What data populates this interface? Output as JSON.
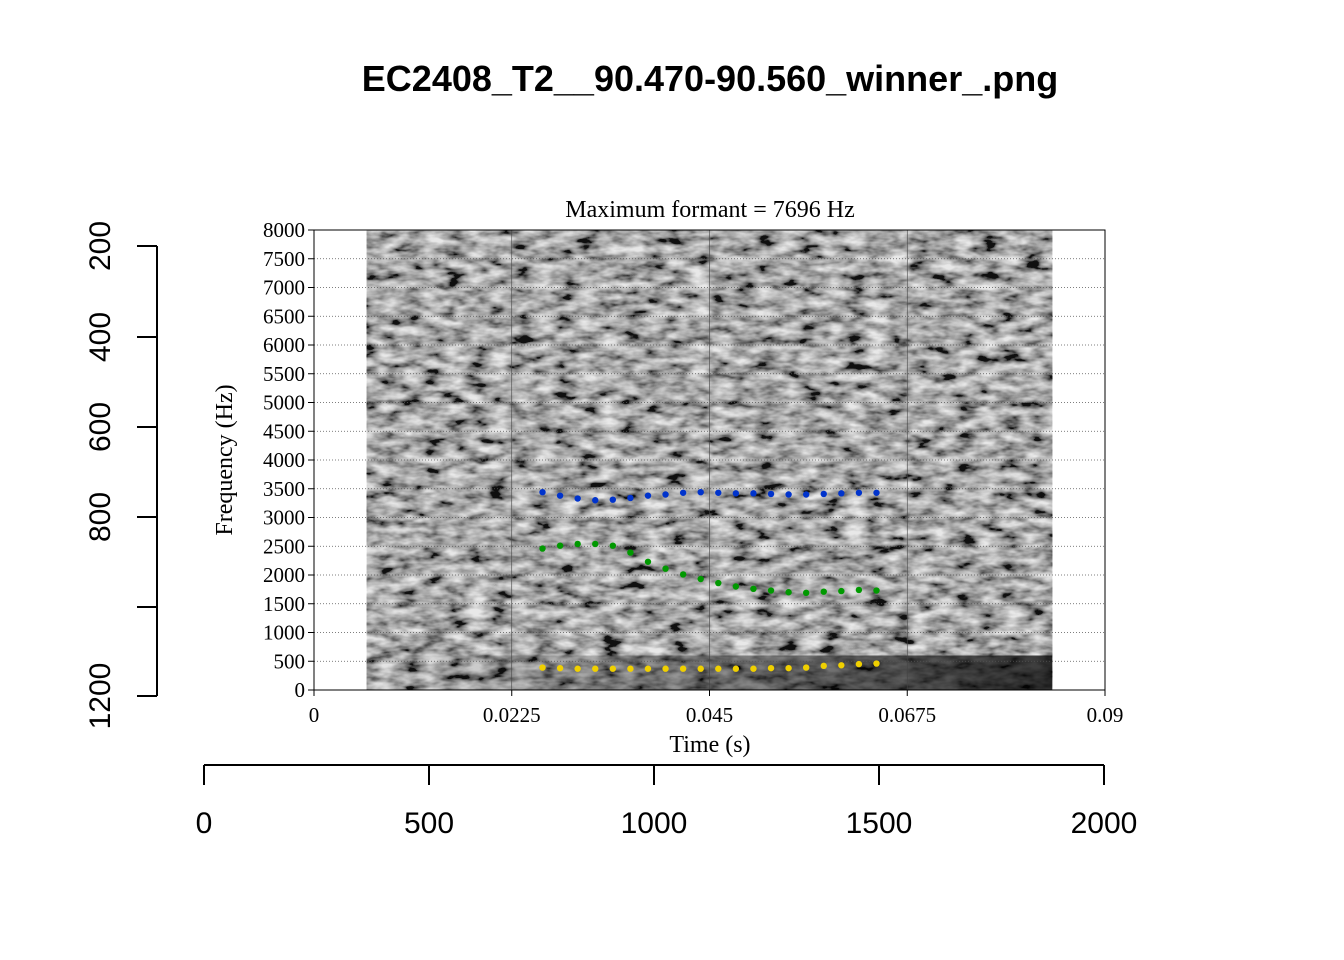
{
  "page": {
    "title": "EC2408_T2__90.470-90.560_winner_.png"
  },
  "chart_data": [
    {
      "type": "scatter",
      "title": "Maximum formant = 7696 Hz",
      "xlabel": "Time (s)",
      "ylabel": "Frequency (Hz)",
      "xlim": [
        0,
        0.09
      ],
      "ylim": [
        0,
        8000
      ],
      "x_ticks": [
        "0",
        "0.0225",
        "0.045",
        "0.0675",
        "0.09"
      ],
      "y_ticks": [
        "0",
        "500",
        "1000",
        "1500",
        "2000",
        "2500",
        "3000",
        "3500",
        "4000",
        "4500",
        "5000",
        "5500",
        "6000",
        "6500",
        "7000",
        "7500",
        "8000"
      ],
      "spectrogram_time_range": [
        0.006,
        0.084
      ],
      "grid": true,
      "series": [
        {
          "color": "#f0d000",
          "x": [
            0.026,
            0.028,
            0.03,
            0.032,
            0.034,
            0.036,
            0.038,
            0.04,
            0.042,
            0.044,
            0.046,
            0.048,
            0.05,
            0.052,
            0.054,
            0.056,
            0.058,
            0.06,
            0.062,
            0.064
          ],
          "y": [
            390,
            380,
            370,
            370,
            370,
            370,
            370,
            370,
            370,
            370,
            370,
            370,
            370,
            380,
            380,
            390,
            420,
            430,
            450,
            460
          ]
        },
        {
          "color": "#009900",
          "x": [
            0.026,
            0.028,
            0.03,
            0.032,
            0.034,
            0.036,
            0.038,
            0.04,
            0.042,
            0.044,
            0.046,
            0.048,
            0.05,
            0.052,
            0.054,
            0.056,
            0.058,
            0.06,
            0.062,
            0.064
          ],
          "y": [
            2460,
            2510,
            2540,
            2540,
            2510,
            2390,
            2230,
            2110,
            2010,
            1930,
            1860,
            1800,
            1760,
            1730,
            1700,
            1690,
            1710,
            1720,
            1740,
            1730
          ]
        },
        {
          "color": "#0033cc",
          "x": [
            0.026,
            0.028,
            0.03,
            0.032,
            0.034,
            0.036,
            0.038,
            0.04,
            0.042,
            0.044,
            0.046,
            0.048,
            0.05,
            0.052,
            0.054,
            0.056,
            0.058,
            0.06,
            0.062,
            0.064
          ],
          "y": [
            3440,
            3380,
            3330,
            3300,
            3310,
            3340,
            3380,
            3400,
            3430,
            3440,
            3430,
            3420,
            3420,
            3410,
            3400,
            3400,
            3410,
            3420,
            3430,
            3430
          ]
        }
      ]
    },
    {
      "type": "axis",
      "x_ticks": [
        "0",
        "500",
        "1000",
        "1500",
        "2000"
      ],
      "xlim": [
        0,
        2000
      ],
      "y_ticks": [
        "200",
        "400",
        "600",
        "800",
        "1200"
      ],
      "ylim": [
        200,
        1200
      ]
    }
  ]
}
